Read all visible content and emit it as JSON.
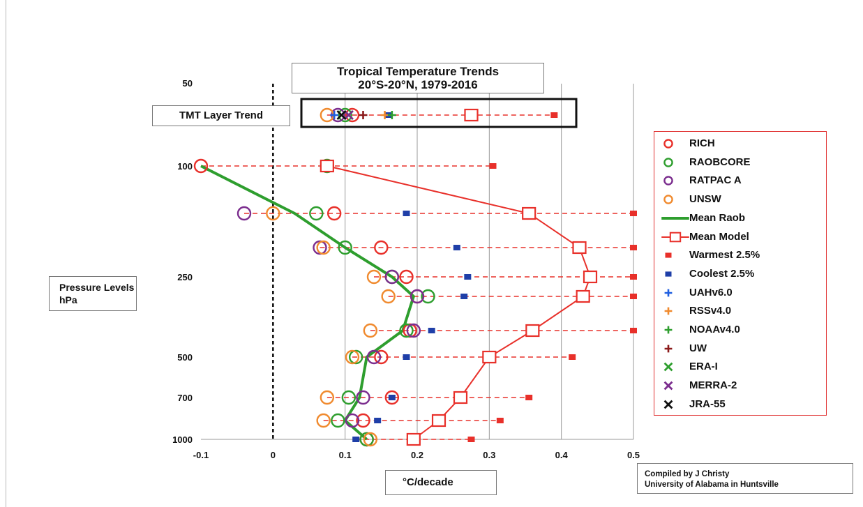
{
  "chart_data": {
    "type": "scatter",
    "title": "Tropical Temperature Trends",
    "subtitle": "20°S-20°N, 1979-2016",
    "xlabel": "°C/decade",
    "ylabel": "Pressure Levels hPa",
    "credit_line1": "Compiled by J Christy",
    "credit_line2": "University of Alabama in Huntsville",
    "tmt_label": "TMT Layer Trend",
    "xlim": [
      -0.1,
      0.5
    ],
    "x_ticks": [
      "-0.1",
      "0",
      "0.1",
      "0.2",
      "0.3",
      "0.4",
      "0.5"
    ],
    "y_ticks": [
      "50",
      "100",
      "250",
      "500",
      "700",
      "1000"
    ],
    "y_tick_levels": [
      50,
      100,
      250,
      500,
      700,
      1000
    ],
    "levels": [
      100,
      150,
      200,
      250,
      300,
      400,
      500,
      700,
      850,
      1000
    ],
    "zero_line": "dashed",
    "grid_x": true,
    "legend_position": "right",
    "series": [
      {
        "name": "RICH",
        "marker": "circle",
        "color": "#e8302a",
        "values": [
          -0.1,
          0.085,
          0.15,
          0.185,
          0.2,
          0.19,
          0.15,
          0.165,
          0.125,
          0.13
        ]
      },
      {
        "name": "RAOBCORE",
        "marker": "circle",
        "color": "#2e9e2e",
        "values": [
          0.075,
          0.06,
          0.1,
          0.165,
          0.215,
          0.185,
          0.115,
          0.105,
          0.09,
          0.13
        ]
      },
      {
        "name": "RATPAC A",
        "marker": "circle",
        "color": "#7b2d8e",
        "values": [
          null,
          -0.04,
          0.065,
          0.165,
          0.2,
          0.195,
          0.14,
          0.125,
          0.11,
          null
        ]
      },
      {
        "name": "UNSW",
        "marker": "circle",
        "color": "#f08a2e",
        "values": [
          null,
          0.0,
          0.07,
          0.14,
          0.16,
          0.135,
          0.11,
          0.075,
          0.07,
          0.135
        ]
      },
      {
        "name": "Mean Raob",
        "marker": "line",
        "color": "#2e9e2e",
        "values": [
          -0.1,
          0.03,
          0.1,
          0.165,
          0.195,
          0.18,
          0.13,
          0.12,
          0.1,
          0.13
        ]
      },
      {
        "name": "Mean Model",
        "marker": "square-line",
        "color": "#e8302a",
        "values": [
          0.075,
          0.355,
          0.425,
          0.44,
          0.43,
          0.36,
          0.3,
          0.26,
          0.23,
          0.195
        ]
      },
      {
        "name": "Warmest 2.5%",
        "marker": "filled-square",
        "color": "#e8302a",
        "values": [
          0.305,
          0.5,
          0.5,
          0.5,
          0.5,
          0.5,
          0.415,
          0.355,
          0.315,
          0.275
        ]
      },
      {
        "name": "Coolest 2.5%",
        "marker": "filled-square",
        "color": "#1f3fa8",
        "values": [
          null,
          0.185,
          0.255,
          0.27,
          0.265,
          0.22,
          0.185,
          0.165,
          0.145,
          0.115
        ]
      }
    ],
    "tmt_layer": [
      {
        "name": "RICH",
        "value": 0.11,
        "marker": "circle",
        "color": "#e8302a"
      },
      {
        "name": "RAOBCORE",
        "value": 0.1,
        "marker": "circle",
        "color": "#2e9e2e"
      },
      {
        "name": "RATPAC A",
        "value": 0.09,
        "marker": "circle",
        "color": "#7b2d8e"
      },
      {
        "name": "UNSW",
        "value": 0.075,
        "marker": "circle",
        "color": "#f08a2e"
      },
      {
        "name": "Mean Model",
        "value": 0.275,
        "marker": "open-square",
        "color": "#e8302a"
      },
      {
        "name": "Warmest 2.5%",
        "value": 0.39,
        "marker": "filled-square",
        "color": "#e8302a"
      },
      {
        "name": "Coolest 2.5%",
        "value": 0.16,
        "marker": "filled-square",
        "color": "#1f3fa8"
      },
      {
        "name": "UAHv6.0",
        "value": 0.085,
        "marker": "plus",
        "color": "#1f5fe0"
      },
      {
        "name": "RSSv4.0",
        "value": 0.155,
        "marker": "plus",
        "color": "#f08a2e"
      },
      {
        "name": "NOAAv4.0",
        "value": 0.165,
        "marker": "plus",
        "color": "#2e9e2e"
      },
      {
        "name": "UW",
        "value": 0.125,
        "marker": "plus",
        "color": "#8b1a1a"
      },
      {
        "name": "ERA-I",
        "value": 0.105,
        "marker": "x",
        "color": "#2e9e2e"
      },
      {
        "name": "MERRA-2",
        "value": 0.105,
        "marker": "x",
        "color": "#7b2d8e"
      },
      {
        "name": "JRA-55",
        "value": 0.095,
        "marker": "x",
        "color": "#111111"
      }
    ],
    "legend": [
      {
        "label": "RICH",
        "marker": "circle",
        "color": "#e8302a"
      },
      {
        "label": "RAOBCORE",
        "marker": "circle",
        "color": "#2e9e2e"
      },
      {
        "label": "RATPAC A",
        "marker": "circle",
        "color": "#7b2d8e"
      },
      {
        "label": "UNSW",
        "marker": "circle",
        "color": "#f08a2e"
      },
      {
        "label": "Mean Raob",
        "marker": "line",
        "color": "#2e9e2e"
      },
      {
        "label": "Mean Model",
        "marker": "square-line",
        "color": "#e8302a"
      },
      {
        "label": "Warmest 2.5%",
        "marker": "filled-square",
        "color": "#e8302a"
      },
      {
        "label": "Coolest 2.5%",
        "marker": "filled-square",
        "color": "#1f3fa8"
      },
      {
        "label": "UAHv6.0",
        "marker": "plus",
        "color": "#1f5fe0"
      },
      {
        "label": "RSSv4.0",
        "marker": "plus",
        "color": "#f08a2e"
      },
      {
        "label": "NOAAv4.0",
        "marker": "plus",
        "color": "#2e9e2e"
      },
      {
        "label": "UW",
        "marker": "plus",
        "color": "#8b1a1a"
      },
      {
        "label": "ERA-I",
        "marker": "x",
        "color": "#2e9e2e"
      },
      {
        "label": "MERRA-2",
        "marker": "x",
        "color": "#7b2d8e"
      },
      {
        "label": "JRA-55",
        "marker": "x",
        "color": "#111111"
      }
    ]
  }
}
